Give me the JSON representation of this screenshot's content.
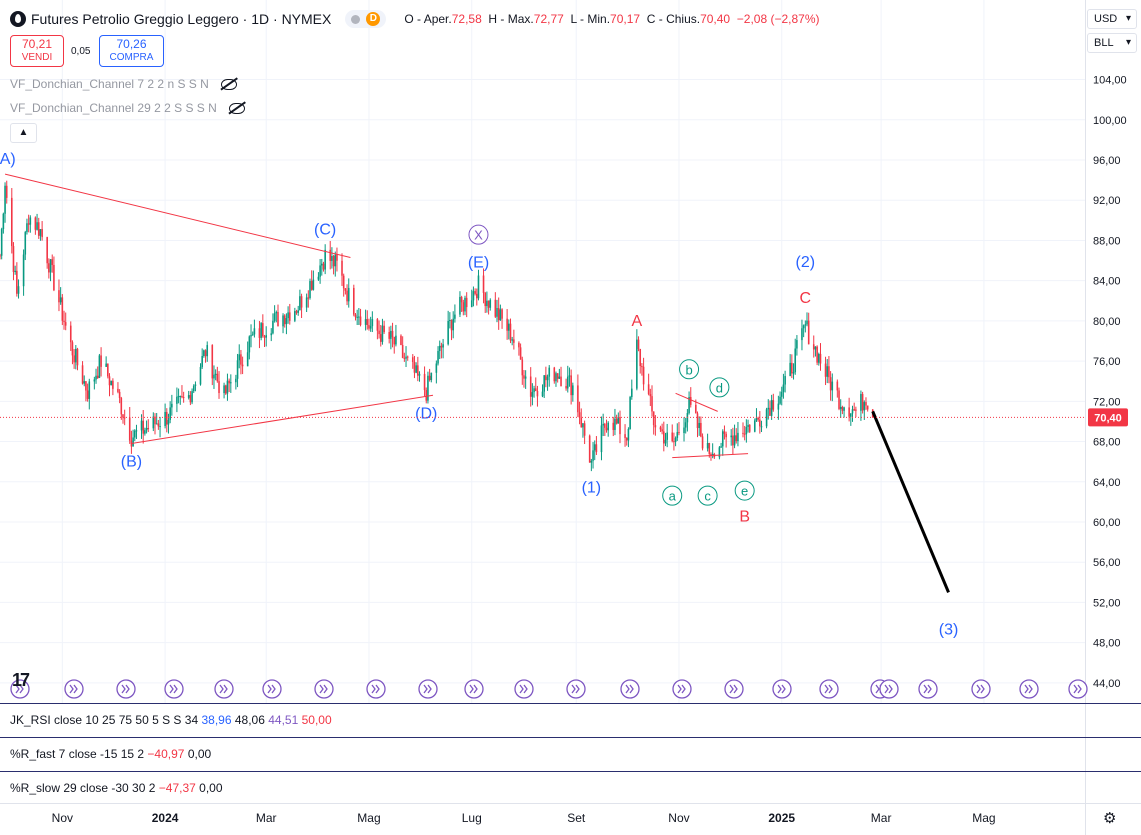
{
  "header": {
    "symbol_title": "Futures Petrolio Greggio Leggero · 1D · NYMEX",
    "badge": "D",
    "o_label": "O - Aper.",
    "o_value": "72,58",
    "h_label": "H - Max.",
    "h_value": "72,77",
    "l_label": "L - Min.",
    "l_value": "70,17",
    "c_label": "C - Chius.",
    "c_value": "70,40",
    "change": "−2,08 (−2,87%)"
  },
  "trade": {
    "sell_price": "70,21",
    "sell_label": "VENDI",
    "spread": "0,05",
    "buy_price": "70,26",
    "buy_label": "COMPRA"
  },
  "indicators": {
    "donchian_1": "VF_Donchian_Channel 7 2 2 n S S N",
    "donchian_2": "VF_Donchian_Channel 29 2 2 S S S N"
  },
  "axis_controls": {
    "currency": "USD",
    "unit": "BLL"
  },
  "panes": {
    "rsi": {
      "label": "JK_RSI close 10 25 75 50 5 S S 34",
      "v1": "38,96",
      "v2": "48,06",
      "v3": "44,51",
      "v4": "50,00"
    },
    "r_fast": {
      "label": "%R_fast 7 close -15 15 2",
      "v1": "−40,97",
      "v2": "0,00"
    },
    "r_slow": {
      "label": "%R_slow 29 close -30 30 2",
      "v1": "−47,37",
      "v2": "0,00"
    }
  },
  "colors": {
    "up": "#089981",
    "down": "#f23645",
    "wave_blue": "#2962ff",
    "wave_red": "#f23645",
    "wave_teal": "#089981",
    "wave_purple": "#7e57c2"
  },
  "chart_data": {
    "type": "candlestick",
    "ylim": [
      42,
      106
    ],
    "y_ticks": [
      "44,00",
      "48,00",
      "52,00",
      "56,00",
      "60,00",
      "64,00",
      "68,00",
      "72,00",
      "76,00",
      "80,00",
      "84,00",
      "88,00",
      "92,00",
      "96,00",
      "100,00",
      "104,00"
    ],
    "y_tick_values": [
      44,
      48,
      52,
      56,
      60,
      64,
      68,
      72,
      76,
      80,
      84,
      88,
      92,
      96,
      100,
      104
    ],
    "x_range": [
      "2023-09-25",
      "2025-06-30"
    ],
    "x_ticks": [
      {
        "date": "2023-11-01",
        "label": "Nov",
        "bold": false
      },
      {
        "date": "2024-01-01",
        "label": "2024",
        "bold": true
      },
      {
        "date": "2024-03-01",
        "label": "Mar",
        "bold": false
      },
      {
        "date": "2024-05-01",
        "label": "Mag",
        "bold": false
      },
      {
        "date": "2024-07-01",
        "label": "Lug",
        "bold": false
      },
      {
        "date": "2024-09-01",
        "label": "Set",
        "bold": false
      },
      {
        "date": "2024-11-01",
        "label": "Nov",
        "bold": false
      },
      {
        "date": "2025-01-01",
        "label": "2025",
        "bold": true
      },
      {
        "date": "2025-03-01",
        "label": "Mar",
        "bold": false
      },
      {
        "date": "2025-05-01",
        "label": "Mag",
        "bold": false
      }
    ],
    "last_price": 70.4,
    "last_price_label": "70,40",
    "price_anchors": [
      [
        "2023-09-25",
        86.5
      ],
      [
        "2023-09-28",
        94.0
      ],
      [
        "2023-10-05",
        82.5
      ],
      [
        "2023-10-12",
        90.5
      ],
      [
        "2023-10-19",
        89.0
      ],
      [
        "2023-11-06",
        77.5
      ],
      [
        "2023-11-16",
        73.0
      ],
      [
        "2023-11-24",
        76.0
      ],
      [
        "2023-12-05",
        72.0
      ],
      [
        "2023-12-12",
        68.5
      ],
      [
        "2024-01-02",
        70.5
      ],
      [
        "2024-01-15",
        72.5
      ],
      [
        "2024-01-25",
        77.0
      ],
      [
        "2024-02-05",
        72.5
      ],
      [
        "2024-02-20",
        78.0
      ],
      [
        "2024-03-01",
        79.5
      ],
      [
        "2024-03-20",
        81.5
      ],
      [
        "2024-04-05",
        86.5
      ],
      [
        "2024-04-12",
        85.5
      ],
      [
        "2024-04-20",
        82.0
      ],
      [
        "2024-05-01",
        79.5
      ],
      [
        "2024-05-15",
        78.0
      ],
      [
        "2024-06-04",
        73.0
      ],
      [
        "2024-06-10",
        76.0
      ],
      [
        "2024-06-20",
        80.5
      ],
      [
        "2024-07-05",
        83.5
      ],
      [
        "2024-07-25",
        78.5
      ],
      [
        "2024-08-05",
        73.0
      ],
      [
        "2024-08-20",
        75.0
      ],
      [
        "2024-08-30",
        73.5
      ],
      [
        "2024-09-10",
        65.8
      ],
      [
        "2024-09-20",
        70.5
      ],
      [
        "2024-10-01",
        68.5
      ],
      [
        "2024-10-07",
        77.5
      ],
      [
        "2024-10-17",
        70.0
      ],
      [
        "2024-10-28",
        67.5
      ],
      [
        "2024-11-07",
        71.5
      ],
      [
        "2024-11-18",
        67.0
      ],
      [
        "2024-12-02",
        68.5
      ],
      [
        "2024-12-17",
        70.0
      ],
      [
        "2025-01-03",
        73.5
      ],
      [
        "2025-01-15",
        79.5
      ],
      [
        "2025-01-28",
        74.5
      ],
      [
        "2025-02-05",
        72.0
      ],
      [
        "2025-02-14",
        71.0
      ],
      [
        "2025-02-20",
        72.5
      ],
      [
        "2025-02-24",
        70.4
      ]
    ],
    "annotations": {
      "waves": [
        {
          "label": "(A)",
          "date": "2023-09-28",
          "value": 94.6,
          "color": "wave_blue",
          "pos": "above"
        },
        {
          "label": "(B)",
          "date": "2023-12-12",
          "value": 67.9,
          "color": "wave_blue",
          "pos": "below"
        },
        {
          "label": "(C)",
          "date": "2024-04-05",
          "value": 87.6,
          "color": "wave_blue",
          "pos": "above"
        },
        {
          "label": "(D)",
          "date": "2024-06-04",
          "value": 72.7,
          "color": "wave_blue",
          "pos": "below"
        },
        {
          "label": "(E)",
          "date": "2024-07-05",
          "value": 84.3,
          "color": "wave_blue",
          "pos": "above"
        },
        {
          "label": "X",
          "date": "2024-07-05",
          "value": 84.3,
          "color": "wave_purple",
          "pos": "circle-high"
        },
        {
          "label": "(1)",
          "date": "2024-09-10",
          "value": 65.3,
          "color": "wave_blue",
          "pos": "below"
        },
        {
          "label": "A",
          "date": "2024-10-07",
          "value": 78.5,
          "color": "wave_red",
          "pos": "above"
        },
        {
          "label": "a",
          "date": "2024-10-28",
          "value": 66.5,
          "color": "wave_teal",
          "pos": "circle-below"
        },
        {
          "label": "b",
          "date": "2024-11-07",
          "value": 72.8,
          "color": "wave_teal",
          "pos": "circle-above"
        },
        {
          "label": "c",
          "date": "2024-11-18",
          "value": 66.5,
          "color": "wave_teal",
          "pos": "circle-below"
        },
        {
          "label": "d",
          "date": "2024-11-25",
          "value": 71.0,
          "color": "wave_teal",
          "pos": "circle-above"
        },
        {
          "label": "e",
          "date": "2024-12-10",
          "value": 67.0,
          "color": "wave_teal",
          "pos": "circle-below"
        },
        {
          "label": "B",
          "date": "2024-12-10",
          "value": 67.0,
          "color": "wave_red",
          "pos": "far-below"
        },
        {
          "label": "(2)",
          "date": "2025-01-15",
          "value": 80.8,
          "color": "wave_blue",
          "pos": "far-above"
        },
        {
          "label": "C",
          "date": "2025-01-15",
          "value": 80.8,
          "color": "wave_red",
          "pos": "above"
        },
        {
          "label": "(3)",
          "date": "2025-04-10",
          "value": 51.2,
          "color": "wave_blue",
          "pos": "below"
        }
      ],
      "trend_lines": [
        {
          "from": [
            "2023-09-28",
            94.6
          ],
          "to": [
            "2024-04-20",
            86.3
          ],
          "color": "wave_red"
        },
        {
          "from": [
            "2023-12-12",
            67.8
          ],
          "to": [
            "2024-06-08",
            72.6
          ],
          "color": "wave_red"
        },
        {
          "from": [
            "2024-10-30",
            72.8
          ],
          "to": [
            "2024-11-24",
            71.0
          ],
          "color": "wave_red"
        },
        {
          "from": [
            "2024-10-28",
            66.4
          ],
          "to": [
            "2024-12-12",
            66.8
          ],
          "color": "wave_red"
        }
      ],
      "projection": {
        "from": [
          "2025-02-24",
          71.0
        ],
        "to": [
          "2025-04-10",
          53.0
        ]
      }
    }
  }
}
